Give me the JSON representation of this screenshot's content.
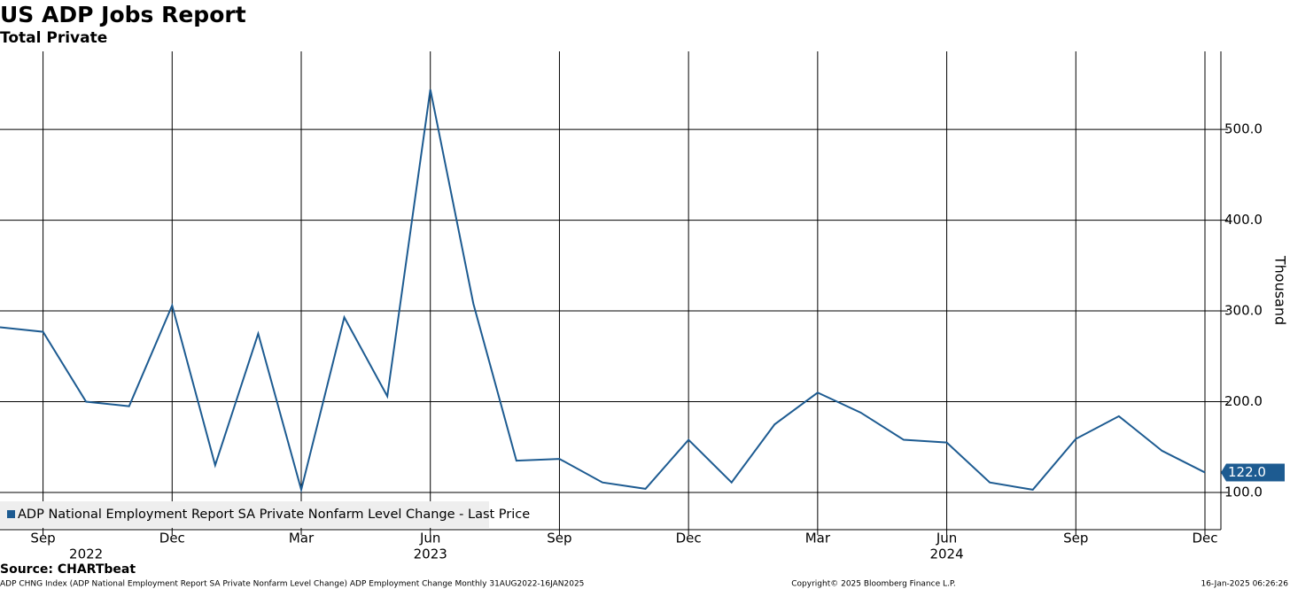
{
  "chart_data": {
    "type": "line",
    "title": "US ADP Jobs Report",
    "subtitle": "Total Private",
    "y_axis_label": "Thousand",
    "source": "Source: CHARTbeat",
    "footer_left": "ADP CHNG Index (ADP National Employment Report SA Private Nonfarm Level Change) ADP Employment Change  Monthly 31AUG2022-16JAN2025",
    "footer_center": "Copyright© 2025 Bloomberg Finance L.P.",
    "footer_right": "16-Jan-2025 06:26:26",
    "x": [
      "2022-08",
      "2022-09",
      "2022-10",
      "2022-11",
      "2022-12",
      "2023-01",
      "2023-02",
      "2023-03",
      "2023-04",
      "2023-05",
      "2023-06",
      "2023-07",
      "2023-08",
      "2023-09",
      "2023-10",
      "2023-11",
      "2023-12",
      "2024-01",
      "2024-02",
      "2024-03",
      "2024-04",
      "2024-05",
      "2024-06",
      "2024-07",
      "2024-08",
      "2024-09",
      "2024-10",
      "2024-11",
      "2024-12"
    ],
    "series": [
      {
        "name": "ADP National Employment Report SA Private Nonfarm Level Change - Last Price",
        "color": "#1d5b91",
        "values": [
          282,
          277,
          200,
          195,
          306,
          130,
          275,
          103,
          293,
          206,
          544,
          308,
          135,
          137,
          111,
          104,
          158,
          111,
          175,
          210,
          188,
          158,
          155,
          111,
          103,
          159,
          184,
          146,
          122
        ],
        "value_labels": [
          null,
          null,
          null,
          null,
          null,
          null,
          null,
          null,
          null,
          null,
          null,
          null,
          null,
          null,
          null,
          null,
          null,
          null,
          null,
          null,
          null,
          null,
          null,
          null,
          null,
          null,
          null,
          null,
          "122.0"
        ]
      }
    ],
    "xlim": [
      "2022-08",
      "2024-12"
    ],
    "xticks": [
      {
        "value": "2022-09",
        "label": "Sep"
      },
      {
        "value": "2022-12",
        "label": "Dec"
      },
      {
        "value": "2023-03",
        "label": "Mar"
      },
      {
        "value": "2023-06",
        "label": "Jun"
      },
      {
        "value": "2023-09",
        "label": "Sep"
      },
      {
        "value": "2023-12",
        "label": "Dec"
      },
      {
        "value": "2024-03",
        "label": "Mar"
      },
      {
        "value": "2024-06",
        "label": "Jun"
      },
      {
        "value": "2024-09",
        "label": "Sep"
      },
      {
        "value": "2024-12",
        "label": "Dec"
      }
    ],
    "xyears": [
      {
        "value": "2022-10",
        "label": "2022"
      },
      {
        "value": "2023-06",
        "label": "2023"
      },
      {
        "value": "2024-06",
        "label": "2024"
      }
    ],
    "ylim": [
      59,
      586
    ],
    "yticks": [
      {
        "value": 100,
        "label": "100.0"
      },
      {
        "value": 200,
        "label": "200.0"
      },
      {
        "value": 300,
        "label": "300.0"
      },
      {
        "value": 400,
        "label": "400.0"
      },
      {
        "value": 500,
        "label": "500.0"
      }
    ],
    "grid": true,
    "legend": "bottom-left"
  }
}
